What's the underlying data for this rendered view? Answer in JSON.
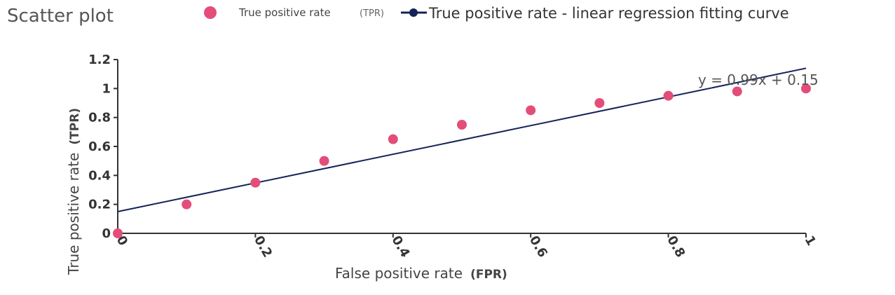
{
  "chart_data": {
    "type": "scatter",
    "title": "Scatter plot",
    "xlabel": "False positive rate",
    "xlabel_unit": "(FPR)",
    "ylabel": "True positive rate",
    "ylabel_unit": "(TPR)",
    "xlim": [
      0,
      1
    ],
    "ylim": [
      0,
      1.2
    ],
    "xticks": [
      "0",
      "0.2",
      "0.4",
      "0.6",
      "0.8",
      "1"
    ],
    "yticks": [
      "0",
      "0.2",
      "0.4",
      "0.6",
      "0.8",
      "1",
      "1.2"
    ],
    "grid": false,
    "legend_position": "top",
    "series": [
      {
        "name": "True positive rate",
        "name_unit": "(TPR)",
        "kind": "scatter",
        "color": "#e44d79",
        "x": [
          0,
          0.1,
          0.2,
          0.3,
          0.4,
          0.5,
          0.6,
          0.7,
          0.8,
          0.9,
          1.0
        ],
        "y": [
          0,
          0.2,
          0.35,
          0.5,
          0.65,
          0.75,
          0.85,
          0.9,
          0.95,
          0.98,
          1.0
        ]
      },
      {
        "name": "True positive rate - linear regression fitting curve",
        "kind": "line",
        "color": "#15235a",
        "slope": 0.99,
        "intercept": 0.15,
        "x": [
          0,
          1
        ],
        "y": [
          0.15,
          1.14
        ]
      }
    ],
    "annotation": "y = 0.99x + 0.15"
  }
}
